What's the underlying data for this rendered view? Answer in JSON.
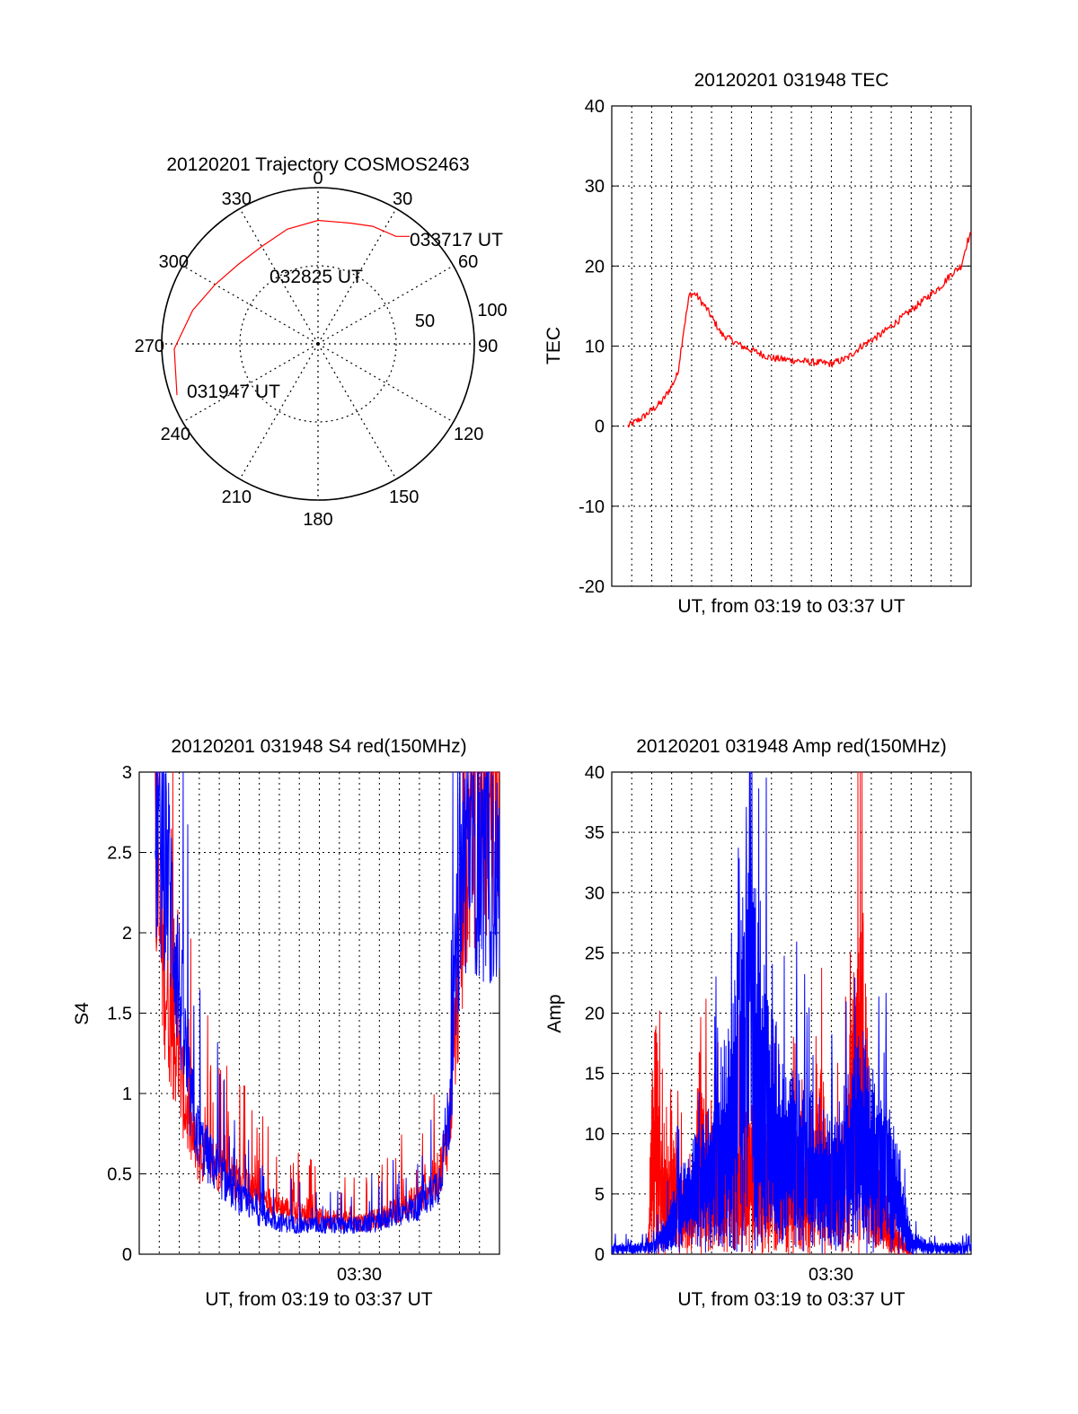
{
  "colors": {
    "red": "#ff0000",
    "blue": "#0000ff",
    "axis": "#000000",
    "grid": "#000000"
  },
  "polar": {
    "title": "20120201 Trajectory COSMOS2463",
    "azimuth_labels": [
      "0",
      "30",
      "60",
      "90",
      "120",
      "150",
      "180",
      "210",
      "240",
      "270",
      "300",
      "330"
    ],
    "ring_labels": [
      "50",
      "100"
    ],
    "rings": [
      50,
      100
    ],
    "point_labels": [
      "031947 UT",
      "032825 UT",
      "033717 UT"
    ],
    "track": {
      "units": "azimuth_deg / zenith_deg",
      "points": [
        {
          "az": 250,
          "zen": 96
        },
        {
          "az": 268,
          "zen": 92
        },
        {
          "az": 285,
          "zen": 83
        },
        {
          "az": 300,
          "zen": 76
        },
        {
          "az": 315,
          "zen": 72
        },
        {
          "az": 330,
          "zen": 72
        },
        {
          "az": 345,
          "zen": 76
        },
        {
          "az": 0,
          "zen": 79
        },
        {
          "az": 15,
          "zen": 80
        },
        {
          "az": 25,
          "zen": 83
        },
        {
          "az": 36,
          "zen": 85
        }
      ]
    }
  },
  "chart_data": [
    {
      "type": "line",
      "title": "20120201 031948 TEC",
      "xlabel": "UT, from 03:19 to 03:37 UT",
      "ylabel": "TEC",
      "ylim": [
        -20,
        40
      ],
      "yticks": [
        "-20",
        "-10",
        "0",
        "10",
        "20",
        "30",
        "40"
      ],
      "grid": true,
      "xlim_minutes": [
        0,
        18
      ],
      "series": [
        {
          "color": "red",
          "x_minutes": [
            0.8,
            1.5,
            2.5,
            3.0,
            3.3,
            3.6,
            3.9,
            4.2,
            4.8,
            5.5,
            6.5,
            8.0,
            10.0,
            11.0,
            11.8,
            12.5,
            13.5,
            14.5,
            15.5,
            16.5,
            17.0,
            17.5,
            17.8,
            18.0
          ],
          "y": [
            0,
            1,
            3,
            5,
            6.5,
            12,
            16.5,
            16.5,
            14.5,
            11.5,
            10,
            8.5,
            8,
            7.8,
            8.5,
            10,
            11.5,
            13.5,
            15.5,
            17.5,
            19,
            20,
            23,
            24
          ]
        }
      ]
    },
    {
      "type": "line",
      "title": "20120201 031948 S4 red(150MHz)",
      "xlabel": "UT, from 03:19 to 03:37 UT",
      "ylabel": "S4",
      "ylim": [
        0,
        3
      ],
      "yticks": [
        "0",
        "0.5",
        "1",
        "1.5",
        "2",
        "2.5",
        "3"
      ],
      "xtick_label": "03:30",
      "xtick_minutes": 11,
      "grid": true,
      "xlim_minutes": [
        0,
        18
      ],
      "series": [
        {
          "color": "red",
          "x_minutes": [
            0.8,
            1.5,
            2.5,
            3.0,
            4.0,
            5.0,
            6.0,
            7.0,
            8.0,
            9.0,
            10.0,
            11.0,
            12.0,
            13.0,
            14.0,
            15.0,
            15.5,
            16.0,
            16.5,
            17.0,
            18.0
          ],
          "y": [
            2.2,
            1.5,
            0.8,
            0.6,
            0.55,
            0.45,
            0.35,
            0.3,
            0.25,
            0.22,
            0.22,
            0.2,
            0.22,
            0.28,
            0.35,
            0.5,
            0.8,
            1.8,
            2.6,
            2.8,
            2.8
          ]
        },
        {
          "color": "blue",
          "x_minutes": [
            0.8,
            1.5,
            2.5,
            3.0,
            4.0,
            5.0,
            6.0,
            7.0,
            8.0,
            9.0,
            10.0,
            11.0,
            12.0,
            13.0,
            14.0,
            15.0,
            15.5,
            16.0,
            16.5,
            17.0,
            18.0
          ],
          "y": [
            2.7,
            2.3,
            1.0,
            0.7,
            0.5,
            0.35,
            0.25,
            0.2,
            0.18,
            0.18,
            0.18,
            0.18,
            0.2,
            0.25,
            0.3,
            0.45,
            0.9,
            2.2,
            2.6,
            2.4,
            2.3
          ]
        }
      ]
    },
    {
      "type": "area",
      "title": "20120201 031948 Amp red(150MHz)",
      "xlabel": "UT, from 03:19 to 03:37 UT",
      "ylabel": "Amp",
      "ylim": [
        0,
        40
      ],
      "yticks": [
        "0",
        "5",
        "10",
        "15",
        "20",
        "25",
        "30",
        "35",
        "40"
      ],
      "xtick_label": "03:30",
      "xtick_minutes": 11,
      "grid": true,
      "xlim_minutes": [
        0,
        18
      ],
      "series": [
        {
          "color": "red",
          "x_minutes": [
            1.8,
            2.0,
            2.2,
            2.4,
            2.6,
            3.0,
            4.0,
            4.4,
            5.0,
            5.5,
            6.0,
            6.5,
            7.0,
            8.0,
            9.0,
            10.0,
            10.5,
            11.0,
            11.5,
            12.0,
            12.5,
            13.0,
            14.0,
            15.0
          ],
          "y": [
            0,
            14,
            21,
            12,
            8,
            10,
            6,
            18,
            9,
            12,
            11,
            12,
            13,
            12,
            11,
            9,
            16,
            8,
            11,
            20,
            34,
            11,
            3,
            0
          ]
        },
        {
          "color": "blue",
          "x_minutes": [
            0,
            1.5,
            2.0,
            3.0,
            4.0,
            4.5,
            5.0,
            5.5,
            6.0,
            6.5,
            7.0,
            7.5,
            8.0,
            8.5,
            9.0,
            9.5,
            10.0,
            11.0,
            11.5,
            12.0,
            12.5,
            13.0,
            13.5,
            14.0,
            15.0,
            16.0,
            18.0
          ],
          "y": [
            1,
            1,
            1,
            5,
            10,
            12,
            14,
            18,
            21,
            30,
            34,
            30,
            22,
            17,
            16,
            15,
            14,
            12,
            14,
            16,
            20,
            16,
            14,
            12,
            2,
            1,
            1
          ]
        }
      ]
    }
  ]
}
